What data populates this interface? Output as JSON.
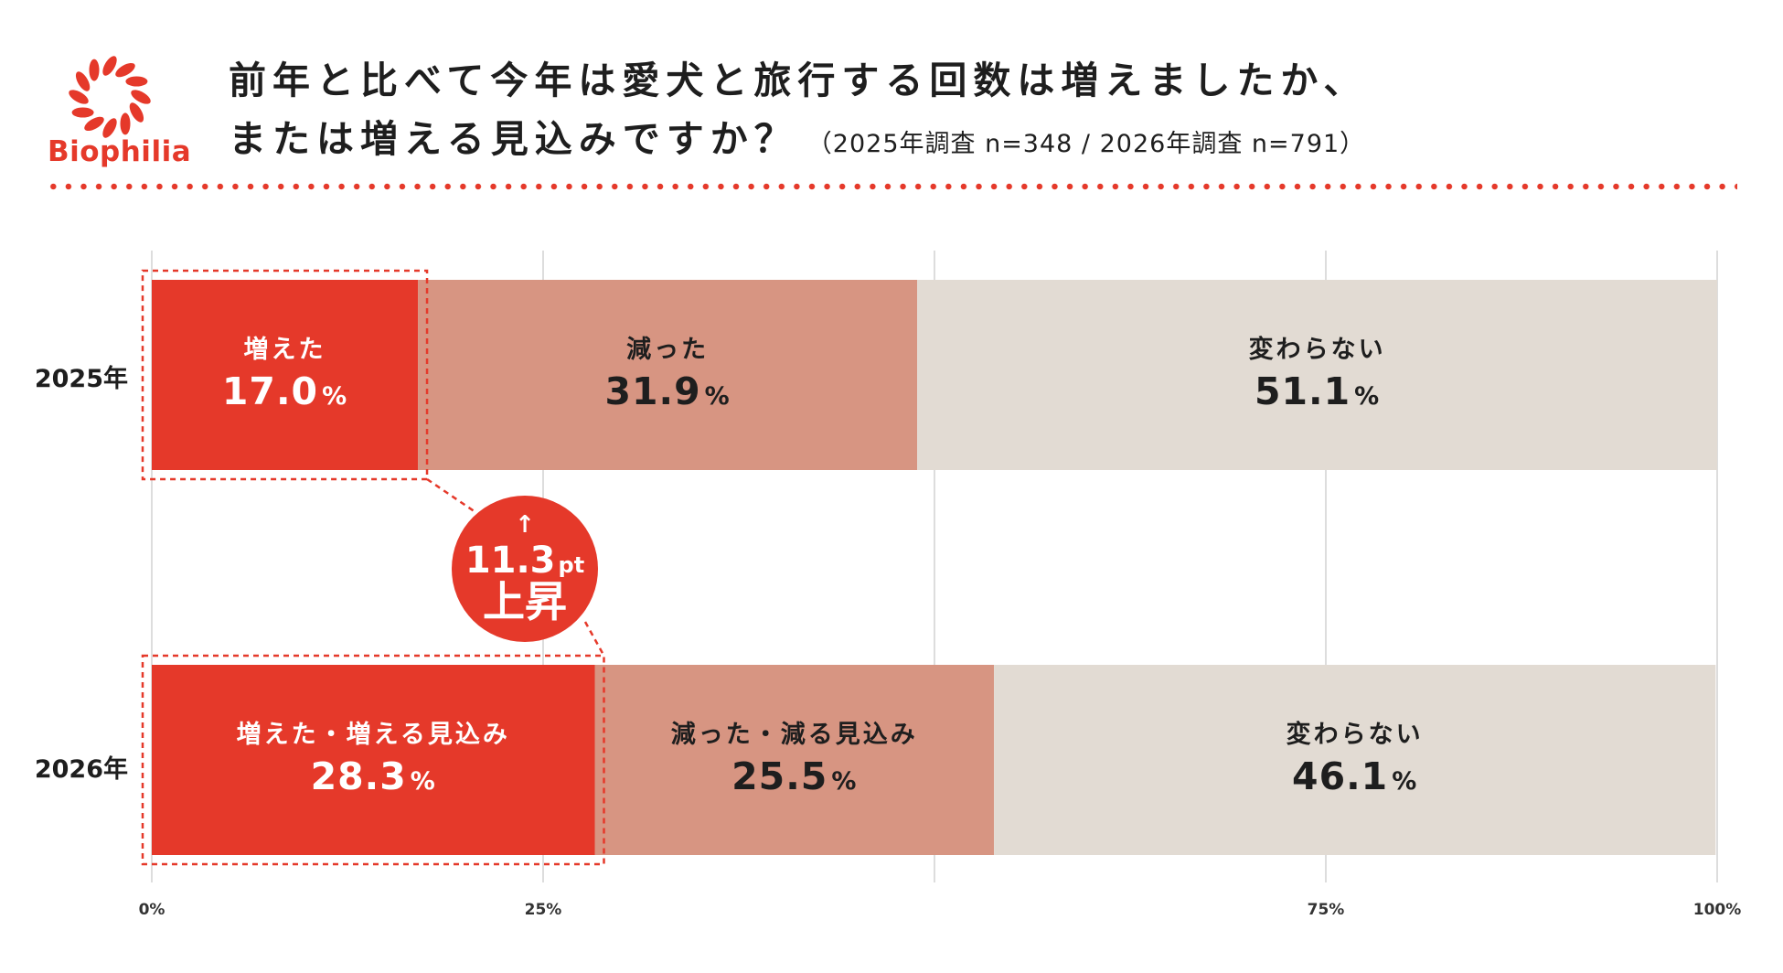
{
  "brand": {
    "name": "Biophilia",
    "accent_color": "#e5392a"
  },
  "header": {
    "title_line1": "前年と比べて今年は愛犬と旅行する回数は増えましたか、",
    "title_line2": "または増える見込みですか？",
    "subtitle": "（2025年調査 n=348 / 2026年調査 n=791）"
  },
  "chart_data": {
    "type": "bar",
    "orientation": "horizontal",
    "stacked": true,
    "xlim": [
      0,
      100
    ],
    "x_tick_labels": [
      "0%",
      "25%",
      "75%",
      "100%"
    ],
    "x_tick_values": [
      0,
      25,
      75,
      100
    ],
    "grid": true,
    "categories": [
      "2025年",
      "2026年"
    ],
    "series_colors": [
      "#e5392a",
      "#d79582",
      "#e2dbd3"
    ],
    "segments": [
      [
        {
          "label": "増えた",
          "value": 17.0,
          "display": "17.0"
        },
        {
          "label": "減った",
          "value": 31.9,
          "display": "31.9"
        },
        {
          "label": "変わらない",
          "value": 51.1,
          "display": "51.1"
        }
      ],
      [
        {
          "label": "増えた・増える見込み",
          "value": 28.3,
          "display": "28.3"
        },
        {
          "label": "減った・減る見込み",
          "value": 25.5,
          "display": "25.5"
        },
        {
          "label": "変わらない",
          "value": 46.1,
          "display": "46.1"
        }
      ]
    ],
    "percent_sign": "%",
    "annotation": {
      "arrow": "↑",
      "value": "11.3",
      "unit": "pt",
      "label": "上昇"
    }
  }
}
